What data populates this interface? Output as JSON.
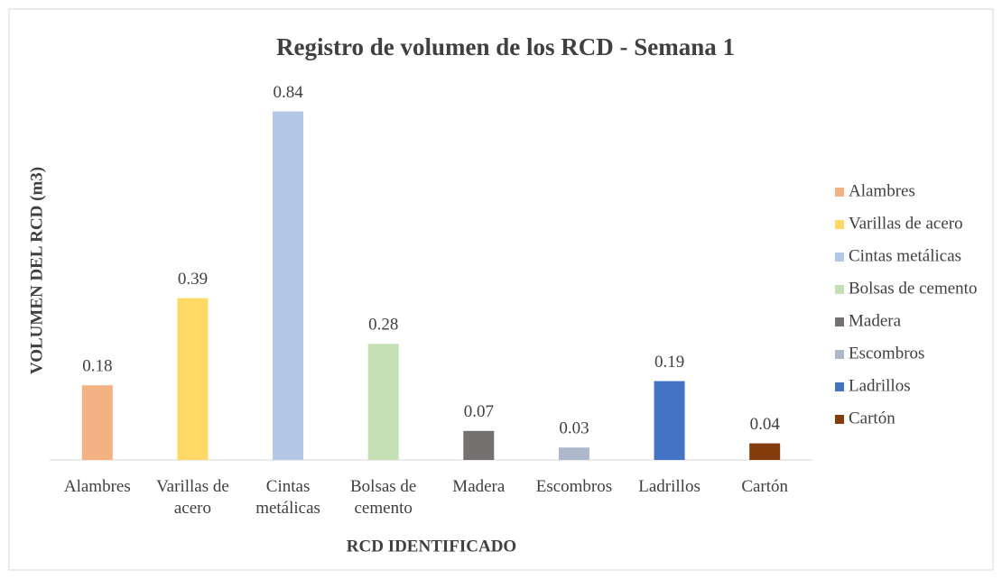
{
  "chart_data": {
    "type": "bar",
    "title": "Registro de volumen de los RCD - Semana 1",
    "y_label": "VOLUMEN DEL RCD (m3)",
    "x_label": "RCD IDENTIFICADO",
    "categories": [
      "Alambres",
      "Varillas de acero",
      "Cintas metálicas",
      "Bolsas de cemento",
      "Madera",
      "Escombros",
      "Ladrillos",
      "Cartón"
    ],
    "values": [
      0.18,
      0.39,
      0.84,
      0.28,
      0.07,
      0.03,
      0.19,
      0.04
    ],
    "colors": [
      "#f4b183",
      "#ffd966",
      "#b4c7e7",
      "#c5e0b4",
      "#767171",
      "#adb9ca",
      "#4472c4",
      "#843c0c"
    ],
    "legend": "right"
  }
}
